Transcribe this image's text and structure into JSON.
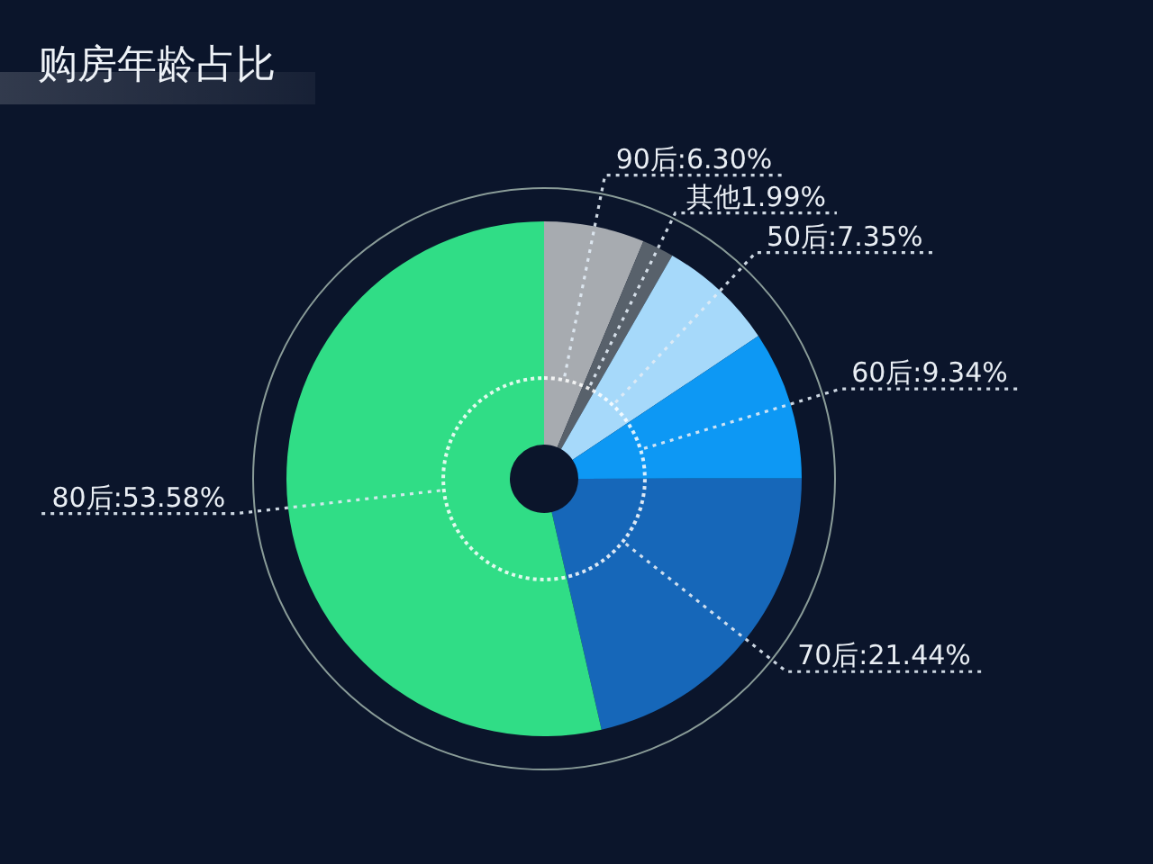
{
  "chart_data": {
    "type": "donut",
    "title": "购房年龄占比",
    "categories": [
      "90后",
      "其他",
      "50后",
      "60后",
      "70后",
      "80后"
    ],
    "values": [
      6.3,
      1.99,
      7.35,
      9.34,
      21.44,
      53.58
    ],
    "colors": [
      "#a7abb0",
      "#58616b",
      "#a6d9fa",
      "#0d98f4",
      "#1667b9",
      "#30dd86"
    ],
    "value_labels": [
      ":6.30%",
      "1.99%",
      ":7.35%",
      ":9.34%",
      ":21.44%",
      ":53.58%"
    ]
  }
}
